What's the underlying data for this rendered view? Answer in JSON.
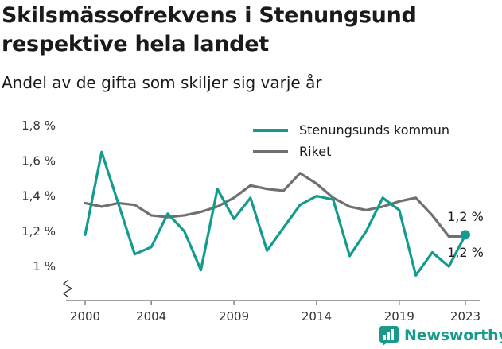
{
  "title": "Skilsmässofrekvens i Stenungsund respektive hela landet",
  "subtitle": "Andel av de gifta som skiljer sig varje år",
  "brand": {
    "name": "Newsworthy",
    "icon": "newsworthy-logo-icon"
  },
  "colors": {
    "local": "#119c8e",
    "national": "#707070",
    "brand": "#1a9b8a"
  },
  "chart_data": {
    "type": "line",
    "x": [
      2000,
      2001,
      2002,
      2003,
      2004,
      2005,
      2006,
      2007,
      2008,
      2009,
      2010,
      2011,
      2012,
      2013,
      2014,
      2015,
      2016,
      2017,
      2018,
      2019,
      2020,
      2021,
      2022,
      2023
    ],
    "series": [
      {
        "name": "Stenungsunds kommun",
        "color": "#119c8e",
        "values": [
          1.18,
          1.65,
          1.36,
          1.07,
          1.11,
          1.3,
          1.2,
          0.98,
          1.44,
          1.27,
          1.39,
          1.09,
          1.22,
          1.35,
          1.4,
          1.38,
          1.06,
          1.2,
          1.39,
          1.32,
          0.95,
          1.08,
          1.0,
          1.18
        ],
        "end_label": "1,2 %"
      },
      {
        "name": "Riket",
        "color": "#707070",
        "values": [
          1.36,
          1.34,
          1.36,
          1.35,
          1.29,
          1.28,
          1.29,
          1.31,
          1.34,
          1.39,
          1.46,
          1.44,
          1.43,
          1.53,
          1.47,
          1.39,
          1.34,
          1.32,
          1.34,
          1.37,
          1.39,
          1.29,
          1.17,
          1.17
        ],
        "end_label": "1,2 %"
      }
    ],
    "x_ticks": [
      "2000",
      "2004",
      "2009",
      "2014",
      "2019",
      "2023"
    ],
    "y_ticks": [
      "1 %",
      "1,2 %",
      "1,4 %",
      "1,6 %",
      "1,8 %"
    ],
    "y_tick_values": [
      1.0,
      1.2,
      1.4,
      1.6,
      1.8
    ],
    "ylim": [
      0.8,
      1.8
    ],
    "axis_break": true,
    "legend_position": "top-right",
    "grid": false
  }
}
